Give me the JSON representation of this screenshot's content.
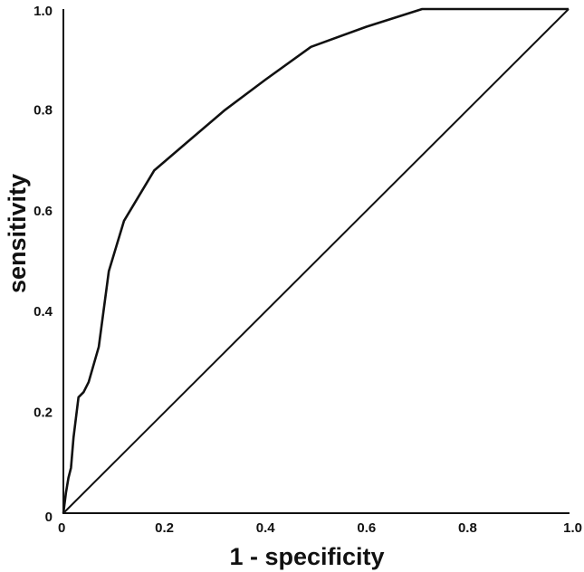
{
  "chart_data": {
    "type": "line",
    "title": "",
    "xlabel": "1 - specificity",
    "ylabel": "sensitivity",
    "xlim": [
      0,
      1
    ],
    "ylim": [
      0,
      1
    ],
    "grid": false,
    "x_ticks": [
      "0",
      "0.2",
      "0.4",
      "0.6",
      "0.8",
      "1.0"
    ],
    "y_ticks": [
      "0",
      "0.2",
      "0.4",
      "0.6",
      "0.8",
      "1.0"
    ],
    "series": [
      {
        "x": [
          0,
          0.005,
          0.01,
          0.015,
          0.02,
          0.03,
          0.04,
          0.05,
          0.07,
          0.09,
          0.12,
          0.15,
          0.18,
          0.25,
          0.32,
          0.4,
          0.49,
          0.6,
          0.71,
          0.85,
          1.0
        ],
        "y": [
          0,
          0.04,
          0.07,
          0.09,
          0.15,
          0.23,
          0.24,
          0.26,
          0.33,
          0.48,
          0.58,
          0.63,
          0.68,
          0.74,
          0.8,
          0.86,
          0.925,
          0.965,
          1.0,
          1.0,
          1.0
        ]
      },
      {
        "x": [
          0,
          1
        ],
        "y": [
          0,
          1
        ]
      }
    ],
    "colors": {
      "line": "#111111",
      "axis": "#111111"
    }
  }
}
